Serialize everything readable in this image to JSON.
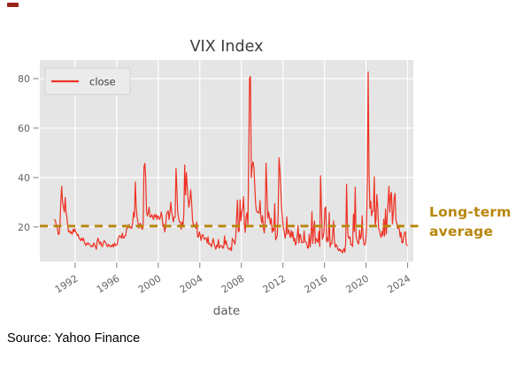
{
  "window": {
    "background": "#ffffff"
  },
  "decor": {
    "corner_mark": {
      "color": "#9b2318"
    }
  },
  "source": {
    "text": "Source: Yahoo Finance"
  },
  "chart_data": {
    "type": "line",
    "title": "VIX Index",
    "xlabel": "date",
    "ylabel": "",
    "grid": true,
    "plot_background": "#e5e5e5",
    "grid_color": "#ffffff",
    "tick_color": "#8a8a8a",
    "tick_label_color": "#636363",
    "title_color": "#3d3d3d",
    "axis_label_color": "#595959",
    "xticks": [
      1992,
      1996,
      2000,
      2004,
      2008,
      2012,
      2016,
      2020,
      2024
    ],
    "yticks": [
      20,
      40,
      60,
      80
    ],
    "xlim": [
      1988.6,
      2024.55
    ],
    "ylim": [
      6,
      87.5
    ],
    "legend": {
      "label": "close",
      "position": "upper left",
      "box_fill": "#ebebeb",
      "box_border": "#d2d2d2",
      "text_color": "#3d3d3d"
    },
    "average_line": {
      "value": 20,
      "color": "#b8860b",
      "style": "dashed",
      "label": "Long-term average",
      "annotation_line1": "Long-term",
      "annotation_line2": "average"
    },
    "series": [
      {
        "name": "close",
        "color": "#ee3123",
        "monthly_close_by_year": {
          "1990": [
            23,
            22,
            20,
            19.5,
            17,
            17,
            21,
            31,
            36.5,
            30,
            28,
            26
          ],
          "1991": [
            32,
            26,
            24,
            20,
            18,
            18.5,
            17.5,
            18,
            17,
            19,
            18,
            19.3
          ],
          "1992": [
            18,
            17.5,
            16.5,
            17,
            15.5,
            15,
            14.5,
            15.5,
            14.5,
            15.5,
            14,
            13
          ],
          "1993": [
            12.5,
            13.5,
            13,
            13.5,
            13,
            12.5,
            12,
            12.5,
            12,
            13.5,
            13,
            12
          ],
          "1994": [
            11,
            14.5,
            15.5,
            14,
            13,
            14,
            12.5,
            12,
            13.5,
            14.5,
            14,
            13.5
          ],
          "1995": [
            12.5,
            12,
            13,
            12.5,
            12,
            12.5,
            12,
            13,
            12,
            13.5,
            12.5,
            12.5
          ],
          "1996": [
            13,
            15,
            16,
            16.5,
            16,
            15.5,
            17.5,
            15.5,
            15.5,
            16.5,
            16.5,
            19.5
          ],
          "1997": [
            19.5,
            20,
            21,
            19.5,
            20,
            19.5,
            22,
            26,
            24,
            38.2,
            28,
            24
          ],
          "1998": [
            22,
            19.5,
            21,
            21.5,
            20,
            19,
            20,
            44.3,
            45.7,
            40,
            26,
            24.5
          ],
          "1999": [
            26,
            28,
            24,
            24,
            25,
            24,
            23,
            25,
            24,
            25,
            23,
            24.5
          ],
          "2000": [
            24,
            23,
            24,
            26,
            24,
            20,
            21,
            18,
            20,
            25,
            26,
            26.5
          ],
          "2001": [
            23,
            26,
            30,
            26,
            24,
            22,
            24,
            24,
            43.7,
            35,
            26,
            23.8
          ],
          "2002": [
            22,
            22,
            19,
            22,
            20,
            25,
            45.1,
            33,
            42,
            36,
            31,
            28
          ],
          "2003": [
            31,
            35,
            30,
            23,
            21,
            21,
            20,
            19.5,
            22,
            16,
            16,
            18
          ],
          "2004": [
            16.5,
            14.5,
            16.5,
            17,
            15.5,
            15,
            15.5,
            15.5,
            13.5,
            16,
            13,
            13.3
          ],
          "2005": [
            12.8,
            12,
            14,
            15.3,
            13.3,
            12,
            11,
            12.6,
            11.9,
            15,
            11.5,
            12
          ],
          "2006": [
            12.5,
            12.3,
            11.4,
            11.6,
            16.4,
            13,
            14.3,
            12.3,
            11.6,
            11,
            10.9,
            11.6
          ],
          "2007": [
            10.4,
            15.4,
            14.6,
            14.2,
            13,
            16,
            23.5,
            30.8,
            18,
            18.5,
            31,
            22.5
          ],
          "2008": [
            26.2,
            27.5,
            32.2,
            20.8,
            17.8,
            23.9,
            25.7,
            20.6,
            46.7,
            80.1,
            80.9,
            40
          ],
          "2009": [
            44.8,
            46.4,
            44.1,
            36.5,
            28.9,
            26.4,
            25.9,
            26,
            25.6,
            30.7,
            24.5,
            21.7
          ],
          "2010": [
            24.6,
            19.5,
            17.6,
            22,
            45.8,
            34.5,
            23.5,
            26,
            23.7,
            21.2,
            23.5,
            17.8
          ],
          "2011": [
            19.5,
            18.4,
            29.4,
            14.8,
            15.5,
            16.5,
            25.2,
            48,
            43,
            36.2,
            27.8,
            23.4
          ],
          "2012": [
            19.4,
            18.4,
            15.5,
            17.2,
            24.1,
            17.1,
            18.9,
            17.5,
            15.7,
            18.6,
            15.9,
            18
          ],
          "2013": [
            14.3,
            15.5,
            12.7,
            13.5,
            16.3,
            20.5,
            13.5,
            17,
            16.6,
            13.8,
            13.7,
            13.7
          ],
          "2014": [
            18.4,
            14,
            13.9,
            13.4,
            11.4,
            11.6,
            17,
            12,
            16.3,
            26.2,
            13.3,
            19.2
          ],
          "2015": [
            22.4,
            13.3,
            15.3,
            14.6,
            13.8,
            18.2,
            12.1,
            40.7,
            27.6,
            15.1,
            16.1,
            18.2
          ],
          "2016": [
            27.6,
            28.1,
            14,
            15.7,
            14.2,
            25.8,
            11.9,
            13.4,
            13.3,
            17.1,
            22.5,
            14
          ],
          "2017": [
            11.8,
            12.9,
            12.4,
            10.8,
            10.4,
            11.2,
            10.3,
            10.6,
            9.5,
            10.2,
            11.3,
            9.8
          ],
          "2018": [
            13.5,
            37.3,
            20,
            15.9,
            15.4,
            16.1,
            12.8,
            12.9,
            12.1,
            25.2,
            18.1,
            36.1
          ],
          "2019": [
            16.6,
            14.8,
            13.7,
            13.1,
            18.7,
            15.1,
            16.1,
            24.6,
            16.2,
            13.2,
            12.6,
            13.8
          ],
          "2020": [
            18.8,
            40.1,
            82.7,
            41.5,
            27.5,
            30.4,
            24.5,
            26.4,
            26.4,
            40.3,
            20.6,
            22.8
          ],
          "2021": [
            33.1,
            28,
            19.4,
            18.6,
            16.8,
            15.8,
            18.2,
            16.5,
            23.1,
            16.3,
            27.2,
            17.2
          ],
          "2022": [
            24.8,
            30,
            36.5,
            26,
            33,
            34,
            21.3,
            25.9,
            31.6,
            33.6,
            23,
            21.7
          ],
          "2023": [
            19.4,
            20.7,
            18.7,
            15.8,
            17.9,
            13.6,
            13.6,
            15.9,
            17.5,
            18.1,
            12.9,
            12.5
          ]
        }
      }
    ]
  }
}
